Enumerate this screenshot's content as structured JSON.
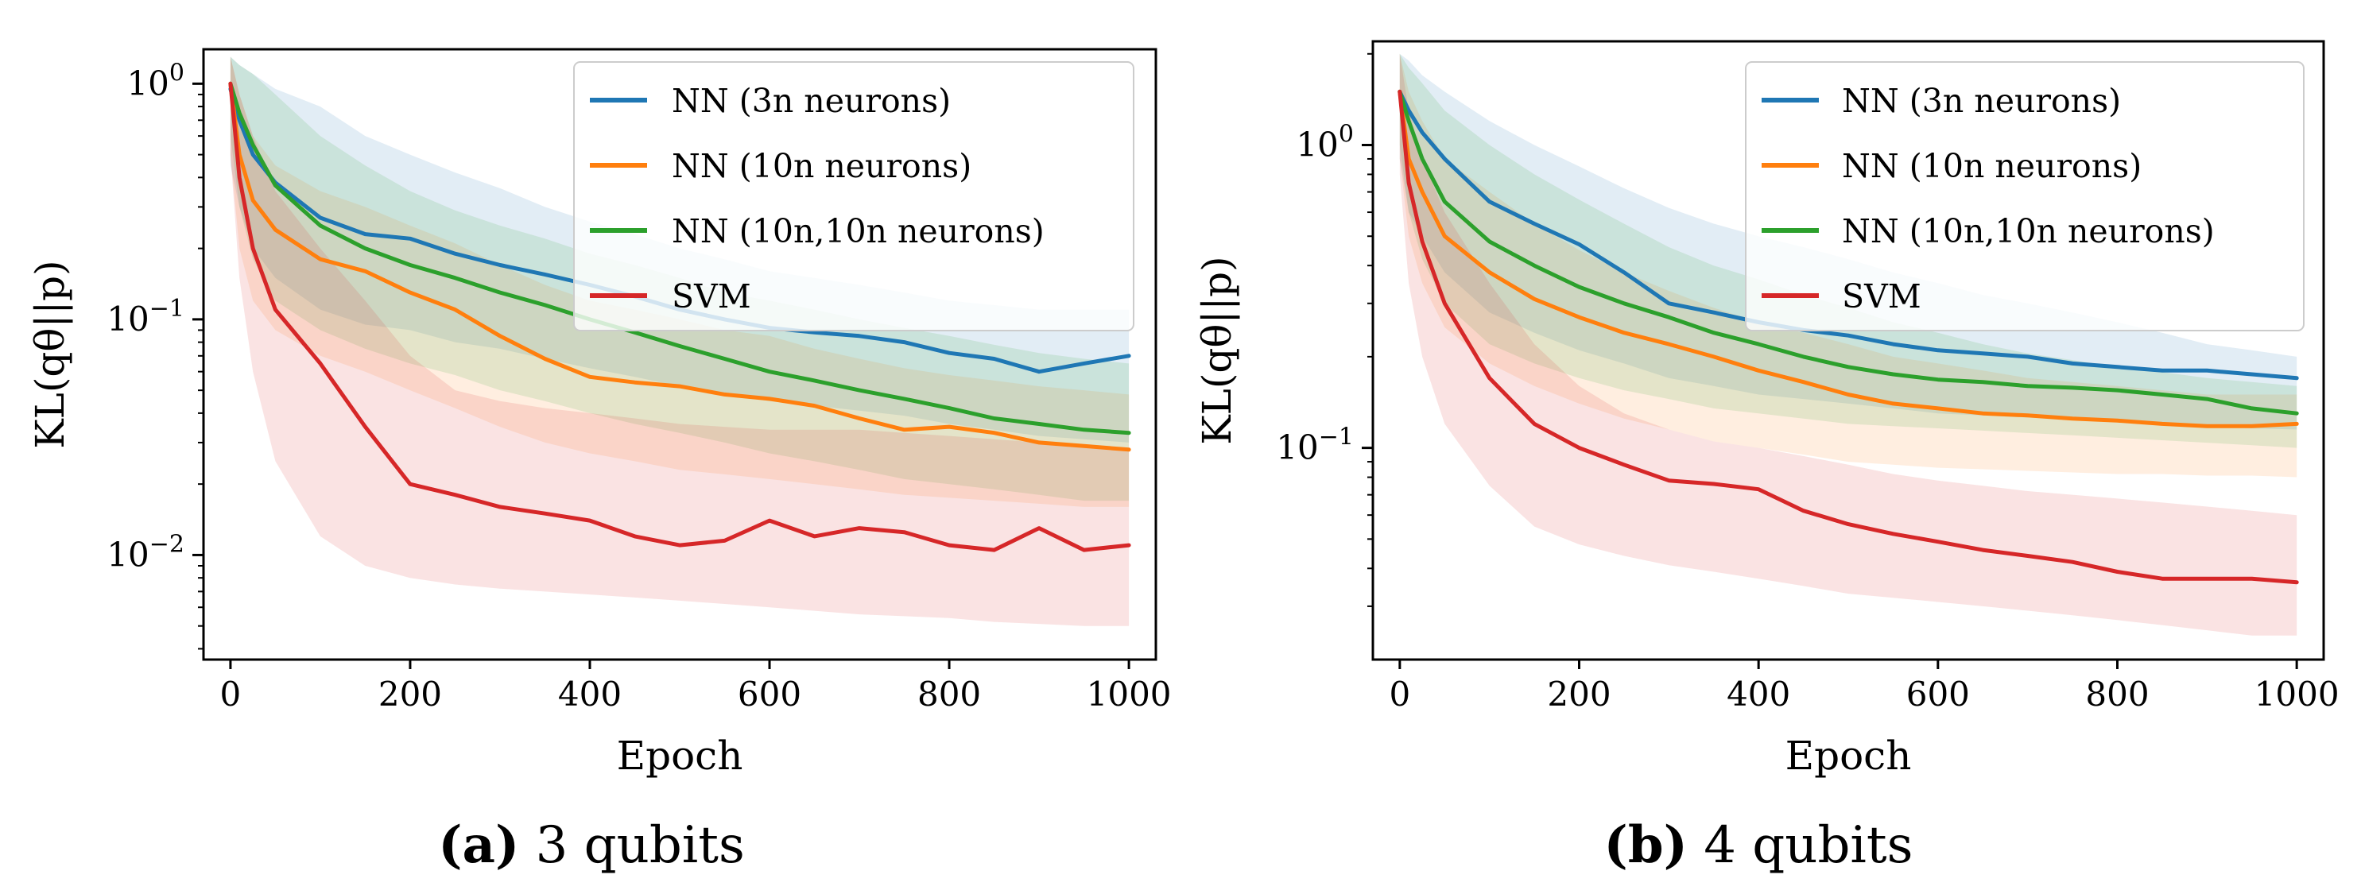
{
  "chart_data": [
    {
      "type": "line",
      "id": "a",
      "caption_tag": "(a)",
      "caption_text": "3 qubits",
      "xlabel": "Epoch",
      "ylabel": "KL(qθ||p)",
      "yscale": "log",
      "xlim": [
        -30,
        1030
      ],
      "ylim": [
        0.0036,
        1.4
      ],
      "xticks": [
        0,
        200,
        400,
        600,
        800,
        1000
      ],
      "xtick_labels": [
        "0",
        "200",
        "400",
        "600",
        "800",
        "1000"
      ],
      "yticks": [
        1,
        0.1,
        0.01
      ],
      "ytick_labels": [
        {
          "base": "10",
          "exp": "0"
        },
        {
          "base": "10",
          "exp": "−1"
        },
        {
          "base": "10",
          "exp": "−2"
        }
      ],
      "legend_position": "upper right",
      "x": [
        0,
        10,
        25,
        50,
        100,
        150,
        200,
        250,
        300,
        350,
        400,
        450,
        500,
        550,
        600,
        650,
        700,
        750,
        800,
        850,
        900,
        950,
        1000
      ],
      "series": [
        {
          "name": "NN (3n neurons)",
          "color": "#1f77b4",
          "values": [
            0.95,
            0.7,
            0.5,
            0.38,
            0.27,
            0.23,
            0.22,
            0.19,
            0.17,
            0.155,
            0.14,
            0.125,
            0.11,
            0.1,
            0.092,
            0.088,
            0.085,
            0.08,
            0.072,
            0.068,
            0.06,
            0.065,
            0.07
          ],
          "lower": [
            0.45,
            0.3,
            0.2,
            0.15,
            0.11,
            0.095,
            0.09,
            0.08,
            0.075,
            0.068,
            0.062,
            0.057,
            0.052,
            0.048,
            0.045,
            0.043,
            0.041,
            0.039,
            0.036,
            0.034,
            0.032,
            0.031,
            0.03
          ],
          "upper": [
            1.3,
            1.2,
            1.1,
            0.95,
            0.8,
            0.6,
            0.5,
            0.42,
            0.36,
            0.3,
            0.26,
            0.23,
            0.2,
            0.18,
            0.16,
            0.15,
            0.14,
            0.13,
            0.12,
            0.115,
            0.11,
            0.11,
            0.11
          ]
        },
        {
          "name": "NN (10n neurons)",
          "color": "#ff7f0e",
          "values": [
            1.0,
            0.5,
            0.32,
            0.24,
            0.18,
            0.16,
            0.13,
            0.11,
            0.085,
            0.068,
            0.057,
            0.054,
            0.052,
            0.048,
            0.046,
            0.043,
            0.038,
            0.034,
            0.035,
            0.033,
            0.03,
            0.029,
            0.028
          ],
          "lower": [
            0.5,
            0.2,
            0.12,
            0.09,
            0.07,
            0.06,
            0.05,
            0.042,
            0.035,
            0.03,
            0.027,
            0.025,
            0.023,
            0.022,
            0.021,
            0.02,
            0.019,
            0.018,
            0.0175,
            0.017,
            0.0165,
            0.016,
            0.016
          ],
          "upper": [
            1.3,
            0.9,
            0.6,
            0.45,
            0.35,
            0.3,
            0.25,
            0.21,
            0.17,
            0.14,
            0.12,
            0.11,
            0.1,
            0.09,
            0.085,
            0.075,
            0.068,
            0.062,
            0.058,
            0.055,
            0.052,
            0.05,
            0.048
          ]
        },
        {
          "name": "NN (10n,10n neurons)",
          "color": "#2ca02c",
          "values": [
            1.0,
            0.75,
            0.55,
            0.37,
            0.25,
            0.2,
            0.17,
            0.15,
            0.13,
            0.115,
            0.1,
            0.088,
            0.077,
            0.068,
            0.06,
            0.055,
            0.05,
            0.046,
            0.042,
            0.038,
            0.036,
            0.034,
            0.033
          ],
          "lower": [
            0.6,
            0.3,
            0.18,
            0.12,
            0.09,
            0.075,
            0.065,
            0.058,
            0.05,
            0.045,
            0.04,
            0.036,
            0.033,
            0.03,
            0.027,
            0.025,
            0.023,
            0.021,
            0.02,
            0.019,
            0.018,
            0.017,
            0.017
          ],
          "upper": [
            1.3,
            1.2,
            1.1,
            0.9,
            0.6,
            0.45,
            0.35,
            0.29,
            0.25,
            0.22,
            0.19,
            0.17,
            0.15,
            0.13,
            0.12,
            0.11,
            0.1,
            0.092,
            0.085,
            0.078,
            0.072,
            0.068,
            0.065
          ]
        },
        {
          "name": "SVM",
          "color": "#d62728",
          "values": [
            1.0,
            0.4,
            0.2,
            0.11,
            0.065,
            0.035,
            0.02,
            0.018,
            0.016,
            0.015,
            0.014,
            0.012,
            0.011,
            0.0115,
            0.014,
            0.012,
            0.013,
            0.0125,
            0.011,
            0.0105,
            0.013,
            0.0105,
            0.011
          ],
          "lower": [
            0.5,
            0.15,
            0.06,
            0.025,
            0.012,
            0.009,
            0.008,
            0.0075,
            0.0072,
            0.007,
            0.0068,
            0.0066,
            0.0064,
            0.0062,
            0.006,
            0.0058,
            0.0056,
            0.0055,
            0.0054,
            0.0052,
            0.0051,
            0.005,
            0.005
          ],
          "upper": [
            1.3,
            0.9,
            0.6,
            0.35,
            0.2,
            0.12,
            0.07,
            0.05,
            0.045,
            0.042,
            0.04,
            0.038,
            0.036,
            0.035,
            0.034,
            0.034,
            0.034,
            0.033,
            0.032,
            0.031,
            0.03,
            0.029,
            0.028
          ]
        }
      ]
    },
    {
      "type": "line",
      "id": "b",
      "caption_tag": "(b)",
      "caption_text": "4 qubits",
      "xlabel": "Epoch",
      "ylabel": "KL(qθ||p)",
      "yscale": "log",
      "xlim": [
        -30,
        1030
      ],
      "ylim": [
        0.02,
        2.2
      ],
      "xticks": [
        0,
        200,
        400,
        600,
        800,
        1000
      ],
      "xtick_labels": [
        "0",
        "200",
        "400",
        "600",
        "800",
        "1000"
      ],
      "yticks": [
        1,
        0.1
      ],
      "ytick_labels": [
        {
          "base": "10",
          "exp": "0"
        },
        {
          "base": "10",
          "exp": "−1"
        }
      ],
      "legend_position": "upper right",
      "x": [
        0,
        10,
        25,
        50,
        100,
        150,
        200,
        250,
        300,
        350,
        400,
        450,
        500,
        550,
        600,
        650,
        700,
        750,
        800,
        850,
        900,
        950,
        1000
      ],
      "series": [
        {
          "name": "NN (3n neurons)",
          "color": "#1f77b4",
          "values": [
            1.5,
            1.3,
            1.1,
            0.9,
            0.65,
            0.55,
            0.47,
            0.38,
            0.3,
            0.28,
            0.26,
            0.245,
            0.235,
            0.22,
            0.21,
            0.205,
            0.2,
            0.19,
            0.185,
            0.18,
            0.18,
            0.175,
            0.17
          ],
          "lower": [
            0.9,
            0.6,
            0.5,
            0.38,
            0.28,
            0.24,
            0.21,
            0.19,
            0.17,
            0.16,
            0.15,
            0.145,
            0.14,
            0.135,
            0.13,
            0.128,
            0.126,
            0.124,
            0.122,
            0.12,
            0.118,
            0.116,
            0.115
          ],
          "upper": [
            2.0,
            1.9,
            1.7,
            1.5,
            1.2,
            1.0,
            0.85,
            0.72,
            0.62,
            0.55,
            0.5,
            0.46,
            0.42,
            0.38,
            0.35,
            0.32,
            0.3,
            0.28,
            0.26,
            0.24,
            0.22,
            0.21,
            0.2
          ]
        },
        {
          "name": "NN (10n neurons)",
          "color": "#ff7f0e",
          "values": [
            1.5,
            0.9,
            0.7,
            0.5,
            0.38,
            0.31,
            0.27,
            0.24,
            0.22,
            0.2,
            0.18,
            0.165,
            0.15,
            0.14,
            0.135,
            0.13,
            0.128,
            0.125,
            0.123,
            0.12,
            0.118,
            0.118,
            0.12
          ],
          "lower": [
            0.9,
            0.5,
            0.35,
            0.25,
            0.19,
            0.16,
            0.14,
            0.125,
            0.115,
            0.105,
            0.1,
            0.095,
            0.09,
            0.088,
            0.086,
            0.085,
            0.084,
            0.083,
            0.082,
            0.082,
            0.081,
            0.081,
            0.08
          ],
          "upper": [
            2.0,
            1.5,
            1.2,
            0.9,
            0.7,
            0.55,
            0.45,
            0.38,
            0.33,
            0.29,
            0.26,
            0.24,
            0.22,
            0.2,
            0.19,
            0.18,
            0.17,
            0.165,
            0.16,
            0.155,
            0.15,
            0.15,
            0.15
          ]
        },
        {
          "name": "NN (10n,10n neurons)",
          "color": "#2ca02c",
          "values": [
            1.5,
            1.2,
            0.9,
            0.65,
            0.48,
            0.4,
            0.34,
            0.3,
            0.27,
            0.24,
            0.22,
            0.2,
            0.185,
            0.175,
            0.168,
            0.165,
            0.16,
            0.158,
            0.155,
            0.15,
            0.145,
            0.135,
            0.13
          ],
          "lower": [
            1.0,
            0.6,
            0.42,
            0.3,
            0.22,
            0.19,
            0.17,
            0.155,
            0.145,
            0.135,
            0.13,
            0.125,
            0.12,
            0.118,
            0.116,
            0.114,
            0.112,
            0.11,
            0.108,
            0.106,
            0.104,
            0.102,
            0.1
          ],
          "upper": [
            2.0,
            1.8,
            1.6,
            1.3,
            1.0,
            0.8,
            0.66,
            0.55,
            0.46,
            0.4,
            0.36,
            0.32,
            0.29,
            0.26,
            0.24,
            0.22,
            0.205,
            0.195,
            0.185,
            0.178,
            0.17,
            0.165,
            0.16
          ]
        },
        {
          "name": "SVM",
          "color": "#d62728",
          "values": [
            1.5,
            0.75,
            0.48,
            0.3,
            0.17,
            0.12,
            0.1,
            0.088,
            0.078,
            0.076,
            0.073,
            0.062,
            0.056,
            0.052,
            0.049,
            0.046,
            0.044,
            0.042,
            0.039,
            0.037,
            0.037,
            0.037,
            0.036
          ],
          "lower": [
            0.8,
            0.35,
            0.2,
            0.12,
            0.075,
            0.055,
            0.048,
            0.044,
            0.041,
            0.039,
            0.037,
            0.035,
            0.033,
            0.032,
            0.031,
            0.03,
            0.029,
            0.028,
            0.027,
            0.026,
            0.025,
            0.024,
            0.024
          ],
          "upper": [
            2.0,
            1.3,
            0.9,
            0.6,
            0.35,
            0.22,
            0.16,
            0.13,
            0.115,
            0.105,
            0.1,
            0.094,
            0.088,
            0.082,
            0.078,
            0.075,
            0.072,
            0.07,
            0.068,
            0.066,
            0.064,
            0.062,
            0.06
          ]
        }
      ]
    }
  ]
}
